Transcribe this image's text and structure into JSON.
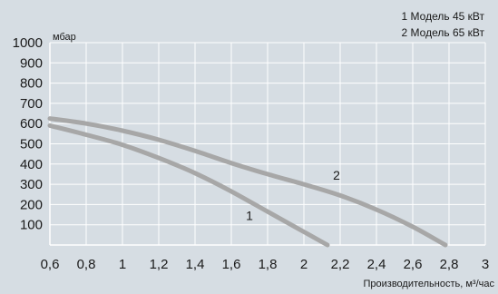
{
  "chart_data": {
    "type": "line",
    "xlabel": "Производительность, м³/час",
    "ylabel": "мбар",
    "xlim": [
      0.6,
      3.0
    ],
    "ylim": [
      0,
      1000
    ],
    "x_ticks": [
      0.6,
      0.8,
      1,
      1.2,
      1.4,
      1.6,
      1.8,
      2,
      2.2,
      2.4,
      2.6,
      2.8,
      3
    ],
    "x_tick_labels": [
      "0,6",
      "0,8",
      "1",
      "1,2",
      "1,4",
      "1,6",
      "1,8",
      "2",
      "2,2",
      "2,4",
      "2,6",
      "2,8",
      "3"
    ],
    "y_ticks": [
      100,
      200,
      300,
      400,
      500,
      600,
      700,
      800,
      900,
      1000
    ],
    "y_tick_labels": [
      "100",
      "200",
      "300",
      "400",
      "500",
      "600",
      "700",
      "800",
      "900",
      "1000"
    ],
    "grid": true,
    "legend": [
      "1 Модель 45 кВт",
      "2 Модель 65 кВт"
    ],
    "legend_position": "top-right",
    "series": [
      {
        "name": "1",
        "color": "#a7a7a7",
        "points": [
          [
            0.6,
            590
          ],
          [
            0.8,
            545
          ],
          [
            1.0,
            495
          ],
          [
            1.2,
            430
          ],
          [
            1.4,
            355
          ],
          [
            1.6,
            265
          ],
          [
            1.8,
            165
          ],
          [
            2.0,
            65
          ],
          [
            2.13,
            0
          ]
        ]
      },
      {
        "name": "2",
        "color": "#a7a7a7",
        "points": [
          [
            0.6,
            625
          ],
          [
            0.8,
            600
          ],
          [
            1.0,
            565
          ],
          [
            1.2,
            520
          ],
          [
            1.4,
            465
          ],
          [
            1.6,
            405
          ],
          [
            1.8,
            350
          ],
          [
            2.0,
            300
          ],
          [
            2.2,
            245
          ],
          [
            2.4,
            175
          ],
          [
            2.6,
            90
          ],
          [
            2.78,
            0
          ]
        ]
      }
    ],
    "curve_labels": [
      {
        "text": "1",
        "x": 1.7,
        "y": 145
      },
      {
        "text": "2",
        "x": 2.18,
        "y": 345
      }
    ]
  }
}
